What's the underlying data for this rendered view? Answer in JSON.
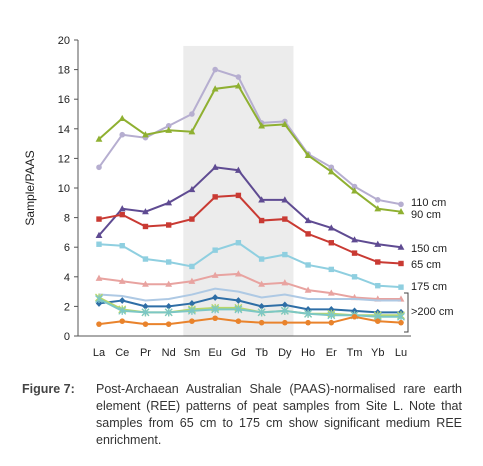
{
  "chart_data": {
    "type": "line",
    "ylabel": "Sample/PAAS",
    "xlabel": "",
    "ylim": [
      0,
      20
    ],
    "yticks": [
      0,
      2,
      4,
      6,
      8,
      10,
      12,
      14,
      16,
      18,
      20
    ],
    "categories": [
      "La",
      "Ce",
      "Pr",
      "Nd",
      "Sm",
      "Eu",
      "Gd",
      "Tb",
      "Dy",
      "Ho",
      "Er",
      "Tm",
      "Yb",
      "Lu"
    ],
    "highlight": {
      "from": "Sm",
      "to": "Dy",
      "color": "#ececec"
    },
    "grid": false,
    "series": [
      {
        "name": "110 cm",
        "color": "#b6aed0",
        "marker": "circle",
        "values": [
          11.4,
          13.6,
          13.4,
          14.2,
          15.0,
          18.0,
          17.5,
          14.4,
          14.5,
          12.3,
          11.4,
          10.1,
          9.2,
          8.9
        ]
      },
      {
        "name": "90 cm",
        "color": "#8fb031",
        "marker": "triangle",
        "values": [
          13.3,
          14.7,
          13.6,
          13.9,
          13.8,
          16.7,
          16.9,
          14.2,
          14.3,
          12.2,
          11.1,
          9.8,
          8.6,
          8.4
        ]
      },
      {
        "name": "150 cm",
        "color": "#5f4b92",
        "marker": "triangle",
        "values": [
          6.8,
          8.6,
          8.4,
          9.0,
          9.9,
          11.4,
          11.2,
          9.2,
          9.2,
          7.8,
          7.3,
          6.5,
          6.2,
          6.0
        ]
      },
      {
        "name": "65 cm",
        "color": "#c93a33",
        "marker": "square",
        "values": [
          7.9,
          8.2,
          7.4,
          7.5,
          7.9,
          9.4,
          9.5,
          7.8,
          7.9,
          6.9,
          6.3,
          5.6,
          5.0,
          4.9
        ]
      },
      {
        "name": "175 cm",
        "color": "#8fcfe0",
        "marker": "square",
        "values": [
          6.2,
          6.1,
          5.2,
          5.0,
          4.7,
          5.8,
          6.3,
          5.2,
          5.5,
          4.8,
          4.5,
          4.0,
          3.4,
          3.3
        ]
      },
      {
        "name": "",
        "color": "#e8a3a0",
        "marker": "triangle",
        "values": [
          3.9,
          3.7,
          3.5,
          3.5,
          3.7,
          4.1,
          4.2,
          3.5,
          3.6,
          3.1,
          2.9,
          2.6,
          2.5,
          2.5
        ]
      },
      {
        "name": "",
        "color": "#aec9e4",
        "marker": "none",
        "values": [
          2.8,
          2.7,
          2.4,
          2.5,
          2.8,
          3.2,
          3.0,
          2.6,
          2.8,
          2.5,
          2.5,
          2.5,
          2.4,
          2.4
        ]
      },
      {
        "name": "",
        "color": "#2e6ea6",
        "marker": "diamond",
        "values": [
          2.2,
          2.4,
          2.0,
          2.0,
          2.2,
          2.6,
          2.4,
          2.0,
          2.1,
          1.8,
          1.8,
          1.7,
          1.6,
          1.6
        ]
      },
      {
        "name": "",
        "color": "#b8d76a",
        "marker": "x",
        "values": [
          2.6,
          1.8,
          1.6,
          1.6,
          1.8,
          1.9,
          1.9,
          1.6,
          1.7,
          1.5,
          1.5,
          1.4,
          1.4,
          1.4
        ]
      },
      {
        "name": "",
        "color": "#7cc7c5",
        "marker": "x",
        "values": [
          2.5,
          1.7,
          1.6,
          1.6,
          1.7,
          1.8,
          1.8,
          1.6,
          1.7,
          1.5,
          1.4,
          1.4,
          1.3,
          1.3
        ]
      },
      {
        "name": "",
        "color": "#e9832c",
        "marker": "circle",
        "values": [
          0.8,
          1.0,
          0.8,
          0.8,
          1.0,
          1.2,
          1.0,
          0.9,
          0.9,
          0.9,
          0.9,
          1.3,
          1.0,
          0.9
        ]
      }
    ],
    "annotations": [
      "110 cm",
      "90 cm",
      "150 cm",
      "65 cm",
      "175 cm",
      ">200 cm"
    ]
  },
  "caption": {
    "label": "Figure 7:",
    "text": "Post-Archaean Australian Shale (PAAS)-normalised rare earth element (REE) patterns of peat samples from Site L. Note that samples from 65 cm to 175 cm show significant medium REE enrichment."
  }
}
